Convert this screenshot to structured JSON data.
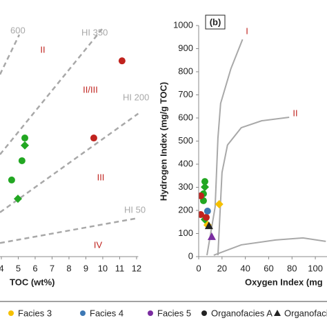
{
  "chart_data": [
    {
      "type": "scatter",
      "xlabel": "TOC (wt%)",
      "xlim": [
        3.92,
        12.1
      ],
      "xticks": [
        4,
        5,
        6,
        7,
        8,
        9,
        10,
        11,
        12
      ],
      "ylim": [
        0,
        44
      ],
      "series": [
        {
          "color": "#c0231e",
          "marker": "circle",
          "x": [
            11.14,
            9.47
          ],
          "y": [
            34.5,
            20.9
          ]
        },
        {
          "color": "#22a722",
          "marker": "circle",
          "x": [
            5.39,
            5.22,
            4.61
          ],
          "y": [
            20.9,
            16.9,
            13.5
          ]
        },
        {
          "color": "#22a722",
          "marker": "diamond",
          "x": [
            5.39,
            4.98
          ],
          "y": [
            19.6,
            10.2
          ]
        }
      ],
      "lines": [
        {
          "label": "600",
          "x": [
            3.92,
            5.06
          ],
          "y": [
            32.1,
            39.1
          ]
        },
        {
          "label": "HI 350",
          "x": [
            3.92,
            9.96
          ],
          "y": [
            18.0,
            40.1
          ]
        },
        {
          "label": "HI 200",
          "x": [
            3.92,
            12.1
          ],
          "y": [
            7.8,
            25.2
          ]
        },
        {
          "label": "HI 50",
          "x": [
            3.92,
            12.1
          ],
          "y": [
            2.4,
            6.8
          ]
        }
      ],
      "annotations": [
        "II",
        "II/III",
        "III",
        "IV"
      ]
    },
    {
      "type": "scatter",
      "title": "(b)",
      "xlabel": "Oxygen Index (mg",
      "ylabel": "Hydrogen Index (mg/g TOC)",
      "xlim": [
        0,
        110
      ],
      "xticks": [
        0,
        20,
        40,
        60,
        80,
        100
      ],
      "ylim": [
        0,
        1000
      ],
      "yticks": [
        0,
        100,
        200,
        300,
        400,
        500,
        600,
        700,
        800,
        900,
        1000
      ],
      "series": [
        {
          "color": "#22a722",
          "marker": "circle",
          "x": [
            5.3,
            4.1,
            4.1
          ],
          "y": [
            325,
            272,
            242
          ]
        },
        {
          "color": "#22a722",
          "marker": "diamond",
          "x": [
            5.3,
            5.3
          ],
          "y": [
            301,
            161
          ]
        },
        {
          "color": "#c0231e",
          "marker": "circle",
          "x": [
            1.8,
            1.8,
            6.5
          ],
          "y": [
            263,
            182,
            170
          ]
        },
        {
          "color": "#f5c000",
          "marker": "diamond",
          "x": [
            17.6,
            7.6
          ],
          "y": [
            227,
            137
          ]
        },
        {
          "color": "#3d78b4",
          "marker": "circle",
          "x": [
            7.6
          ],
          "y": [
            197
          ]
        },
        {
          "color": "#222222",
          "marker": "triangle",
          "x": [
            8.8
          ],
          "y": [
            134
          ]
        },
        {
          "color": "#7a2ca0",
          "marker": "triangle",
          "x": [
            11.2
          ],
          "y": [
            87
          ]
        }
      ],
      "lines": [
        {
          "label": "I",
          "x": [
            7.1,
            14.1,
            16.5,
            18.8,
            27.6,
            37.6
          ],
          "y": [
            6,
            215,
            513,
            663,
            813,
            940
          ]
        },
        {
          "label": "II",
          "x": [
            16.5,
            20,
            24.7,
            36.5,
            54.1,
            77.6
          ],
          "y": [
            6,
            364,
            483,
            558,
            588,
            603
          ]
        },
        {
          "x": [
            12.9,
            36.5,
            65.9,
            89.4,
            109
          ],
          "y": [
            6,
            51,
            72,
            81,
            66
          ]
        }
      ]
    }
  ],
  "legend": [
    {
      "label": "Facies 3",
      "color": "#f5c000",
      "marker": "circle"
    },
    {
      "label": "Facies 4",
      "color": "#3d78b4",
      "marker": "circle"
    },
    {
      "label": "Facies 5",
      "color": "#7a2ca0",
      "marker": "circle"
    },
    {
      "label": "Organofacies A",
      "color": "#222222",
      "marker": "circle"
    },
    {
      "label": "Organofacies",
      "color": "#222222",
      "marker": "triangle"
    }
  ]
}
